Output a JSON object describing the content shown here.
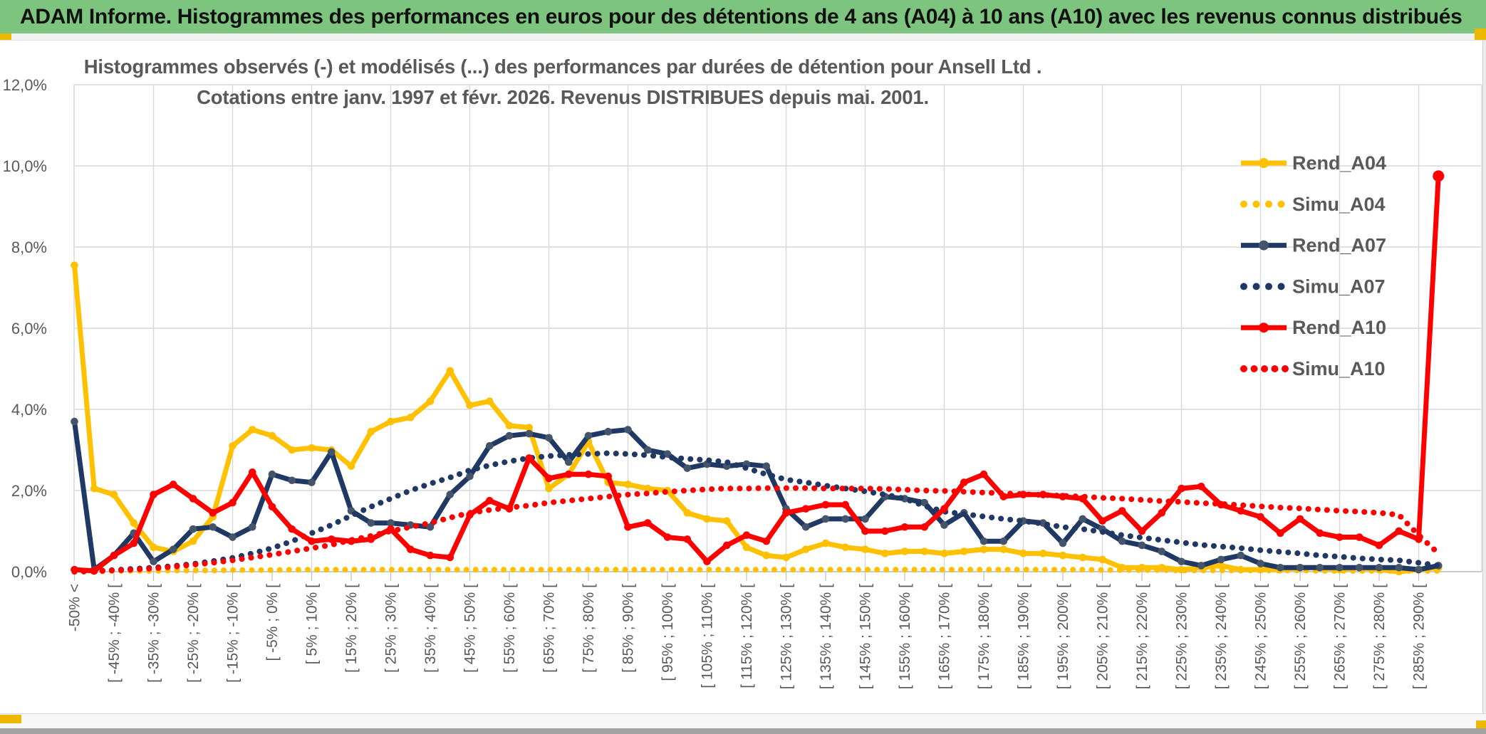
{
  "window": {
    "title": "ADAM Informe. Histogrammes des performances en euros pour des détentions de 4 ans (A04) à 10 ans (A10) avec les revenus connus distribués",
    "titlebar_color": "#7dc47e",
    "accent_color": "#eeb800"
  },
  "chart_data": {
    "type": "line",
    "title_line1": "Histogrammes observés (-) et modélisés (...) des performances par durées de détention pour Ansell Ltd .",
    "title_line2": "Cotations entre janv. 1997 et févr. 2026. Revenus DISTRIBUES depuis mai. 2001.",
    "grid": true,
    "legend_position": "right-upper",
    "ylim": [
      0,
      12
    ],
    "ytick_values": [
      0,
      2,
      4,
      6,
      8,
      10,
      12
    ],
    "ytick_labels": [
      "0,0%",
      "2,0%",
      "4,0%",
      "6,0%",
      "8,0%",
      "10,0%",
      "12,0%"
    ],
    "n_bins": 70,
    "x_tick_note": "labels sit on every other 5%-wide bin, first bin is open-ended below -50%, last bin is the unlabeled spike bin",
    "x_tick_labels": [
      "-50% <",
      "[ -45% ; -40% [",
      "[ -35% ; -30% [",
      "[ -25% ; -20% [",
      "[ -15% ; -10% [",
      "[ -5% ; 0% [",
      "[ 5% ; 10% [",
      "[ 15% ; 20% [",
      "[ 25% ; 30% [",
      "[ 35% ; 40% [",
      "[ 45% ; 50% [",
      "[ 55% ; 60% [",
      "[ 65% ; 70% [",
      "[ 75% ; 80% [",
      "[ 85% ; 90% [",
      "[ 95% ; 100% [",
      "[ 105% ; 110% [",
      "[ 115% ; 120% [",
      "[ 125% ; 130% [",
      "[ 135% ; 140% [",
      "[ 145% ; 150% [",
      "[ 155% ; 160% [",
      "[ 165% ; 170% [",
      "[ 175% ; 180% [",
      "[ 185% ; 190% [",
      "[ 195% ; 200% [",
      "[ 205% ; 210% [",
      "[ 215% ; 220% [",
      "[ 225% ; 230% [",
      "[ 235% ; 240% [",
      "[ 245% ; 250% [",
      "[ 255% ; 260% [",
      "[ 265% ; 270% [",
      "[ 275% ; 280% [",
      "[ 285% ; 290% ["
    ],
    "series": [
      {
        "name": "Rend_A04",
        "style": "solid",
        "color": "#FFC000",
        "marker": "#FFC000",
        "values": [
          7.55,
          2.05,
          1.9,
          1.2,
          0.6,
          0.5,
          0.75,
          1.35,
          3.1,
          3.5,
          3.35,
          3.0,
          3.05,
          3.0,
          2.6,
          3.45,
          3.7,
          3.8,
          4.2,
          4.95,
          4.1,
          4.2,
          3.6,
          3.55,
          2.05,
          2.4,
          3.2,
          2.2,
          2.15,
          2.05,
          2.0,
          1.45,
          1.3,
          1.25,
          0.6,
          0.4,
          0.35,
          0.55,
          0.7,
          0.6,
          0.55,
          0.45,
          0.5,
          0.5,
          0.45,
          0.5,
          0.55,
          0.55,
          0.45,
          0.45,
          0.4,
          0.35,
          0.3,
          0.1,
          0.1,
          0.1,
          0.05,
          0.1,
          0.15,
          0.05,
          0.05,
          0.05,
          0.1,
          0.1,
          0.05,
          0.1,
          0.05,
          0.0,
          0.05,
          0.1
        ]
      },
      {
        "name": "Simu_A04",
        "style": "dotted",
        "color": "#FFC000",
        "values": [
          0.0,
          0.0,
          0.02,
          0.02,
          0.02,
          0.03,
          0.03,
          0.03,
          0.04,
          0.04,
          0.04,
          0.05,
          0.05,
          0.05,
          0.05,
          0.05,
          0.05,
          0.05,
          0.05,
          0.05,
          0.05,
          0.05,
          0.05,
          0.05,
          0.05,
          0.05,
          0.05,
          0.05,
          0.05,
          0.05,
          0.05,
          0.05,
          0.05,
          0.05,
          0.05,
          0.05,
          0.05,
          0.05,
          0.05,
          0.05,
          0.05,
          0.05,
          0.05,
          0.05,
          0.05,
          0.05,
          0.05,
          0.05,
          0.05,
          0.05,
          0.05,
          0.05,
          0.04,
          0.04,
          0.04,
          0.04,
          0.03,
          0.03,
          0.03,
          0.03,
          0.03,
          0.03,
          0.03,
          0.02,
          0.02,
          0.02,
          0.02,
          0.02,
          0.02,
          0.02
        ]
      },
      {
        "name": "Rend_A07",
        "style": "solid",
        "color": "#1F3864",
        "marker": "#44546A",
        "values": [
          3.7,
          0.05,
          0.4,
          0.95,
          0.25,
          0.55,
          1.05,
          1.1,
          0.85,
          1.1,
          2.4,
          2.25,
          2.2,
          2.95,
          1.5,
          1.2,
          1.2,
          1.15,
          1.1,
          1.9,
          2.35,
          3.1,
          3.35,
          3.4,
          3.3,
          2.7,
          3.35,
          3.45,
          3.5,
          3.0,
          2.9,
          2.55,
          2.65,
          2.6,
          2.65,
          2.6,
          1.55,
          1.1,
          1.3,
          1.3,
          1.3,
          1.85,
          1.8,
          1.7,
          1.15,
          1.45,
          0.75,
          0.75,
          1.25,
          1.2,
          0.7,
          1.3,
          1.05,
          0.75,
          0.65,
          0.5,
          0.25,
          0.15,
          0.3,
          0.4,
          0.2,
          0.1,
          0.1,
          0.1,
          0.1,
          0.1,
          0.1,
          0.1,
          0.05,
          0.15
        ]
      },
      {
        "name": "Simu_A07",
        "style": "dotted",
        "color": "#1F3864",
        "values": [
          0.0,
          0.02,
          0.04,
          0.07,
          0.1,
          0.14,
          0.19,
          0.26,
          0.34,
          0.45,
          0.58,
          0.75,
          0.95,
          1.15,
          1.38,
          1.6,
          1.8,
          2.0,
          2.17,
          2.32,
          2.5,
          2.62,
          2.72,
          2.8,
          2.85,
          2.88,
          2.9,
          2.92,
          2.9,
          2.87,
          2.82,
          2.78,
          2.75,
          2.7,
          2.55,
          2.4,
          2.27,
          2.2,
          2.12,
          2.05,
          1.98,
          1.9,
          1.8,
          1.62,
          1.48,
          1.42,
          1.36,
          1.3,
          1.25,
          1.18,
          1.1,
          1.05,
          0.98,
          0.9,
          0.84,
          0.78,
          0.72,
          0.66,
          0.62,
          0.58,
          0.53,
          0.49,
          0.45,
          0.4,
          0.37,
          0.33,
          0.3,
          0.28,
          0.22,
          0.15
        ]
      },
      {
        "name": "Rend_A10",
        "style": "solid",
        "color": "#FF0000",
        "marker": "#FF0000",
        "values": [
          0.05,
          0.02,
          0.4,
          0.7,
          1.9,
          2.15,
          1.8,
          1.45,
          1.7,
          2.45,
          1.6,
          1.05,
          0.75,
          0.8,
          0.75,
          0.8,
          1.05,
          0.55,
          0.4,
          0.35,
          1.4,
          1.75,
          1.55,
          2.8,
          2.3,
          2.4,
          2.4,
          2.35,
          1.1,
          1.2,
          0.85,
          0.8,
          0.25,
          0.65,
          0.9,
          0.75,
          1.45,
          1.55,
          1.65,
          1.65,
          1.0,
          1.0,
          1.1,
          1.1,
          1.55,
          2.2,
          2.4,
          1.85,
          1.9,
          1.9,
          1.85,
          1.8,
          1.25,
          1.5,
          1.0,
          1.45,
          2.05,
          2.1,
          1.65,
          1.5,
          1.35,
          0.95,
          1.3,
          0.95,
          0.85,
          0.85,
          0.65,
          1.0,
          0.8,
          9.75
        ]
      },
      {
        "name": "Simu_A10",
        "style": "dotted",
        "color": "#FF0000",
        "values": [
          0.0,
          0.01,
          0.03,
          0.05,
          0.08,
          0.12,
          0.17,
          0.22,
          0.28,
          0.35,
          0.42,
          0.5,
          0.58,
          0.66,
          0.78,
          0.88,
          1.0,
          1.1,
          1.2,
          1.33,
          1.45,
          1.52,
          1.58,
          1.63,
          1.7,
          1.75,
          1.8,
          1.85,
          1.9,
          1.93,
          1.97,
          2.0,
          2.03,
          2.05,
          2.05,
          2.06,
          2.06,
          2.06,
          2.05,
          2.05,
          2.05,
          2.04,
          2.02,
          2.0,
          1.99,
          1.97,
          1.95,
          1.93,
          1.91,
          1.89,
          1.87,
          1.85,
          1.82,
          1.8,
          1.77,
          1.74,
          1.72,
          1.69,
          1.67,
          1.64,
          1.61,
          1.58,
          1.56,
          1.53,
          1.5,
          1.48,
          1.45,
          1.4,
          0.9,
          0.45
        ]
      }
    ],
    "legend": [
      "Rend_A04",
      "Simu_A04",
      "Rend_A07",
      "Simu_A07",
      "Rend_A10",
      "Simu_A10"
    ],
    "colors": {
      "gridline": "#d9d9d9",
      "axis": "#bfbfbf",
      "axis_text": "#595959",
      "title_text": "#595959"
    }
  }
}
